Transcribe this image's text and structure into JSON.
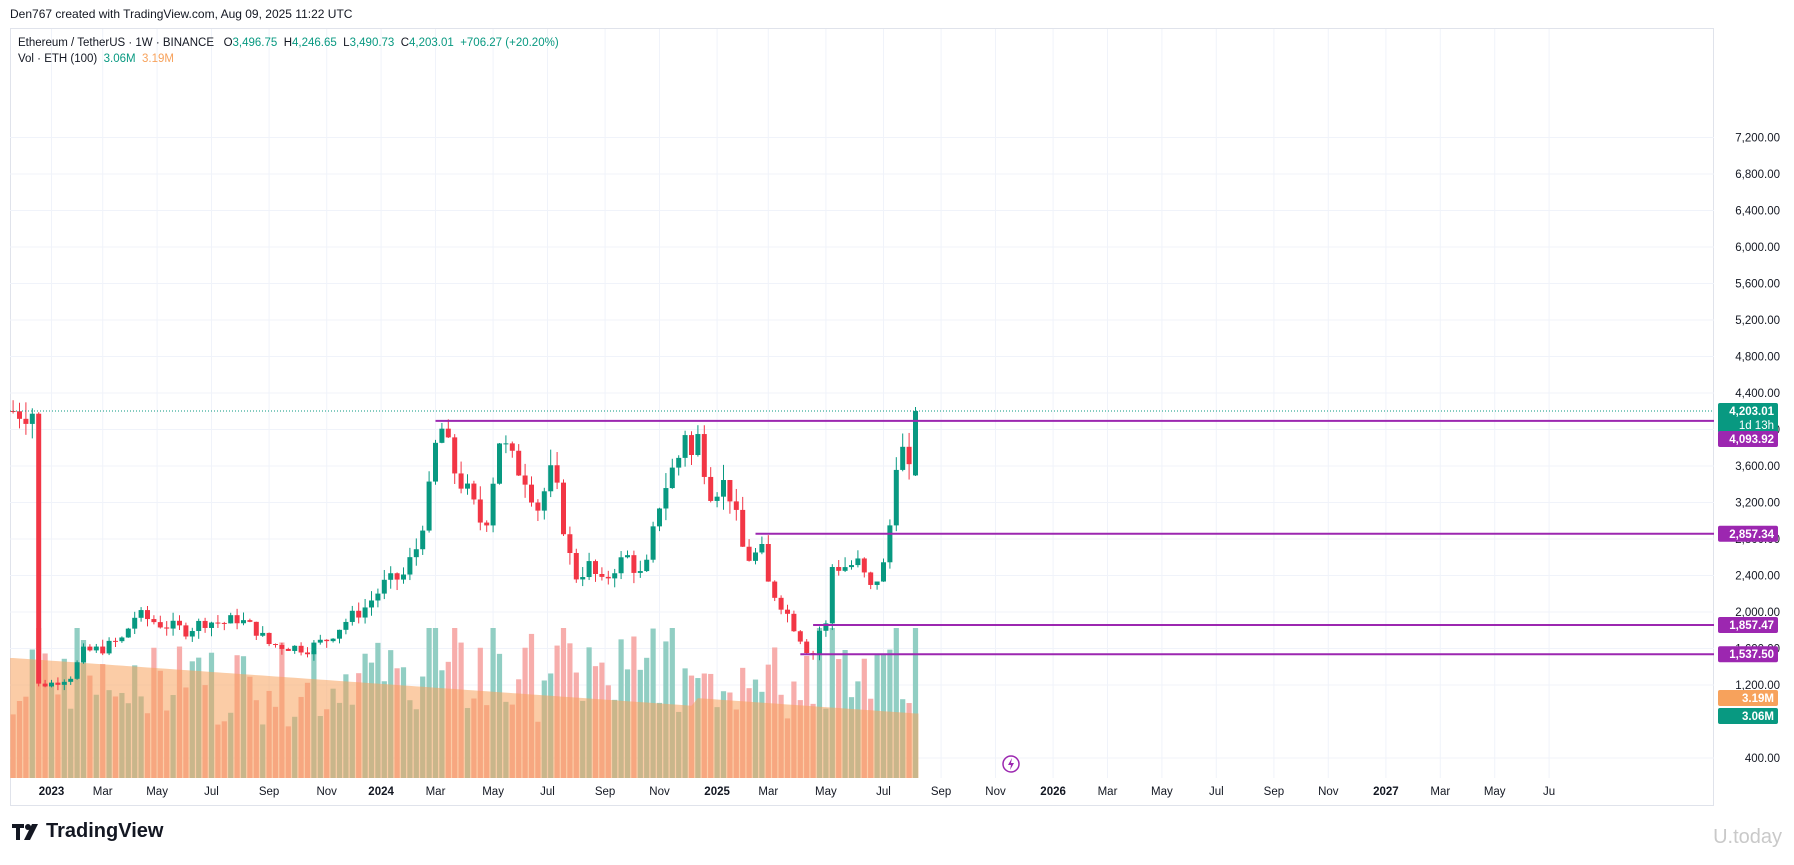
{
  "caption": "Den767 created with TradingView.com, Aug 09, 2025 11:22 UTC",
  "legend": {
    "symbol": "Ethereum / TetherUS · 1W · BINANCE",
    "o_label": "O",
    "o": "3,496.75",
    "h_label": "H",
    "h": "4,246.65",
    "l_label": "L",
    "l": "3,490.73",
    "c_label": "C",
    "c": "4,203.01",
    "change": "+706.27 (+20.20%)",
    "vol_label": "Vol · ETH (100)",
    "vol_value": "3.06M",
    "vol_ma": "3.19M"
  },
  "footer": {
    "brand": "TradingView",
    "watermark": "U.today"
  },
  "colors": {
    "up": "#089981",
    "down": "#f23645",
    "level": "#9c27b0",
    "vol_ma": "#f7a25c",
    "vol_up": "#8bcbc0",
    "vol_down": "#f7a9a7"
  },
  "chart_data": {
    "type": "candlestick",
    "title": "Ethereum / TetherUS · 1W · BINANCE",
    "ylim": [
      200,
      7400
    ],
    "yticks": [
      400,
      1200,
      1600,
      2000,
      2400,
      2800,
      3200,
      3600,
      4000,
      4400,
      4800,
      5200,
      5600,
      6000,
      6400,
      6800,
      7200
    ],
    "ytick_labels": [
      "400.00",
      "1,200.00",
      "1,600.00",
      "2,000.00",
      "2,400.00",
      "2,800.00",
      "3,200.00",
      "3,600.00",
      "4,000.00",
      "4,400.00",
      "4,800.00",
      "5,200.00",
      "5,600.00",
      "6,000.00",
      "6,400.00",
      "6,800.00",
      "7,200.00"
    ],
    "xticks": [
      {
        "week": 0,
        "label": "2023",
        "bold": true
      },
      {
        "week": 8,
        "label": "Mar"
      },
      {
        "week": 16.5,
        "label": "May"
      },
      {
        "week": 25,
        "label": "Jul"
      },
      {
        "week": 34,
        "label": "Sep"
      },
      {
        "week": 43,
        "label": "Nov"
      },
      {
        "week": 51.5,
        "label": "2024",
        "bold": true
      },
      {
        "week": 60,
        "label": "Mar"
      },
      {
        "week": 69,
        "label": "May"
      },
      {
        "week": 77.5,
        "label": "Jul"
      },
      {
        "week": 86.5,
        "label": "Sep"
      },
      {
        "week": 95,
        "label": "Nov"
      },
      {
        "week": 104,
        "label": "2025",
        "bold": true
      },
      {
        "week": 112,
        "label": "Mar"
      },
      {
        "week": 121,
        "label": "May"
      },
      {
        "week": 130,
        "label": "Jul"
      },
      {
        "week": 139,
        "label": "Sep"
      },
      {
        "week": 147.5,
        "label": "Nov"
      },
      {
        "week": 156.5,
        "label": "2026",
        "bold": true
      },
      {
        "week": 165,
        "label": "Mar"
      },
      {
        "week": 173.5,
        "label": "May"
      },
      {
        "week": 182,
        "label": "Jul"
      },
      {
        "week": 191,
        "label": "Sep"
      },
      {
        "week": 199.5,
        "label": "Nov"
      },
      {
        "week": 208.5,
        "label": "2027",
        "bold": true
      },
      {
        "week": 217,
        "label": "Mar"
      },
      {
        "week": 225.5,
        "label": "May"
      },
      {
        "week": 234,
        "label": "Ju"
      }
    ],
    "close_anchors": [
      [
        -2,
        1200
      ],
      [
        0,
        1220
      ],
      [
        3,
        1300
      ],
      [
        5,
        1560
      ],
      [
        8,
        1600
      ],
      [
        11,
        1700
      ],
      [
        13,
        1950
      ],
      [
        14,
        1950
      ],
      [
        17,
        1870
      ],
      [
        21,
        1800
      ],
      [
        24,
        1900
      ],
      [
        27,
        1880
      ],
      [
        29,
        1930
      ],
      [
        32,
        1800
      ],
      [
        34,
        1650
      ],
      [
        37,
        1620
      ],
      [
        40,
        1600
      ],
      [
        43,
        1700
      ],
      [
        46,
        1900
      ],
      [
        49,
        2050
      ],
      [
        52,
        2300
      ],
      [
        55,
        2400
      ],
      [
        57,
        2700
      ],
      [
        59,
        3300
      ],
      [
        60,
        3800
      ],
      [
        61,
        4000
      ],
      [
        63,
        3550
      ],
      [
        65,
        3300
      ],
      [
        67,
        3000
      ],
      [
        68,
        3050
      ],
      [
        70,
        3900
      ],
      [
        72,
        3650
      ],
      [
        74,
        3500
      ],
      [
        76,
        3150
      ],
      [
        78,
        3500
      ],
      [
        79,
        3300
      ],
      [
        81,
        2600
      ],
      [
        82,
        2400
      ],
      [
        84,
        2500
      ],
      [
        86,
        2300
      ],
      [
        88,
        2500
      ],
      [
        90,
        2600
      ],
      [
        92,
        2400
      ],
      [
        93,
        2500
      ],
      [
        95,
        3200
      ],
      [
        96,
        3400
      ],
      [
        98,
        3700
      ],
      [
        99,
        4000
      ],
      [
        100,
        3700
      ],
      [
        101,
        3900
      ],
      [
        103,
        3350
      ],
      [
        105,
        3400
      ],
      [
        106,
        3300
      ],
      [
        108,
        2700
      ],
      [
        109,
        2600
      ],
      [
        111,
        2650
      ],
      [
        112,
        2300
      ],
      [
        114,
        2100
      ],
      [
        116,
        1850
      ],
      [
        118,
        1600
      ],
      [
        119,
        1550
      ],
      [
        120,
        1800
      ],
      [
        121,
        1850
      ],
      [
        122,
        2500
      ],
      [
        124,
        2500
      ],
      [
        126,
        2530
      ],
      [
        128,
        2250
      ],
      [
        130,
        2500
      ],
      [
        131,
        2950
      ],
      [
        132,
        3700
      ],
      [
        133,
        3750
      ],
      [
        134,
        3490
      ],
      [
        135,
        4203
      ]
    ],
    "levels": [
      {
        "value": 4093.92,
        "label": "4,093.92",
        "start_week": 60
      },
      {
        "value": 2857.34,
        "label": "2,857.34",
        "start_week": 110
      },
      {
        "value": 1857.47,
        "label": "1,857.47",
        "start_week": 119
      },
      {
        "value": 1537.5,
        "label": "1,537.50",
        "start_week": 117
      }
    ],
    "last_price": {
      "value": 4203.01,
      "label": "4,203.01",
      "countdown": "1d 13h"
    },
    "last_candle": {
      "week": 135,
      "open": 3496.75,
      "high": 4246.65,
      "low": 3490.73,
      "close": 4203.01
    },
    "volume": {
      "vol_ma_label": "3.19M",
      "vol_label": "3.06M",
      "vol_ma_value": 3.19,
      "vol_value": 3.06,
      "unit": "M"
    }
  }
}
